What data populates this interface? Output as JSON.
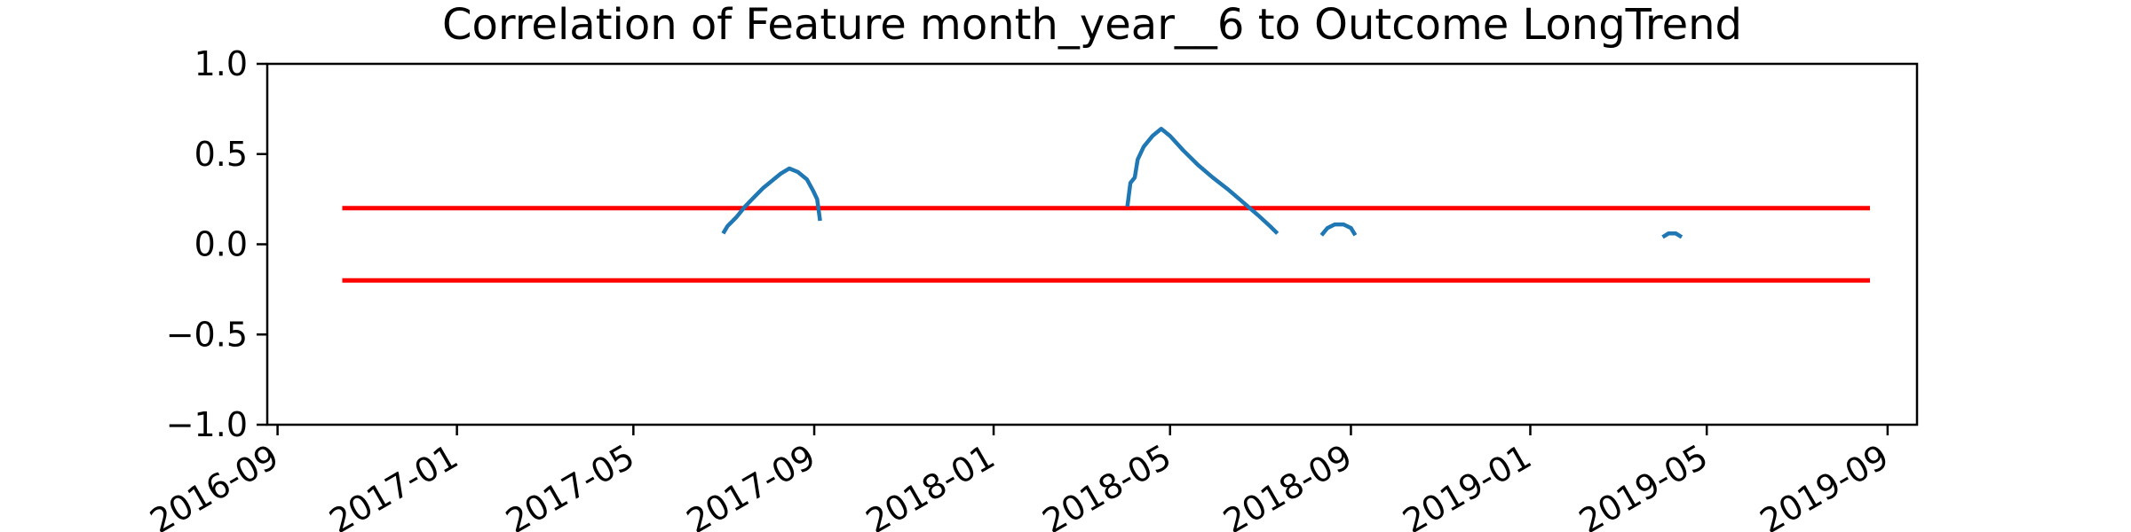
{
  "chart_data": {
    "type": "line",
    "title": "Correlation of Feature month_year__6 to Outcome LongTrend",
    "xlabel": "",
    "ylabel": "",
    "x_axis_type": "date",
    "xlim": [
      "2016-08-25",
      "2019-09-21"
    ],
    "ylim": [
      -1.0,
      1.0
    ],
    "x_ticks": [
      "2016-09",
      "2017-01",
      "2017-05",
      "2017-09",
      "2018-01",
      "2018-05",
      "2018-09",
      "2019-01",
      "2019-05",
      "2019-09"
    ],
    "y_ticks": [
      "1.0",
      "0.5",
      "0.0",
      "−0.5",
      "−1.0"
    ],
    "y_tick_values": [
      1.0,
      0.5,
      0.0,
      -0.5,
      -1.0
    ],
    "grid": false,
    "legend": "none",
    "series": [
      {
        "color": "#1f77b4",
        "segments": [
          [
            [
              "2017-07-01",
              0.06
            ],
            [
              "2017-07-04",
              0.1
            ],
            [
              "2017-07-10",
              0.15
            ],
            [
              "2017-07-16",
              0.21
            ],
            [
              "2017-07-22",
              0.26
            ],
            [
              "2017-07-28",
              0.31
            ],
            [
              "2017-08-03",
              0.35
            ],
            [
              "2017-08-09",
              0.39
            ],
            [
              "2017-08-15",
              0.42
            ],
            [
              "2017-08-21",
              0.4
            ],
            [
              "2017-08-27",
              0.36
            ],
            [
              "2017-08-31",
              0.3
            ],
            [
              "2017-09-03",
              0.25
            ],
            [
              "2017-09-05",
              0.13
            ]
          ],
          [
            [
              "2018-04-02",
              0.21
            ],
            [
              "2018-04-04",
              0.34
            ],
            [
              "2018-04-07",
              0.37
            ],
            [
              "2018-04-09",
              0.47
            ],
            [
              "2018-04-13",
              0.54
            ],
            [
              "2018-04-19",
              0.6
            ],
            [
              "2018-04-25",
              0.64
            ],
            [
              "2018-05-01",
              0.6
            ],
            [
              "2018-05-10",
              0.52
            ],
            [
              "2018-05-20",
              0.44
            ],
            [
              "2018-05-30",
              0.37
            ],
            [
              "2018-06-10",
              0.3
            ],
            [
              "2018-06-20",
              0.23
            ],
            [
              "2018-06-30",
              0.16
            ],
            [
              "2018-07-08",
              0.1
            ],
            [
              "2018-07-13",
              0.06
            ]
          ],
          [
            [
              "2018-08-12",
              0.05
            ],
            [
              "2018-08-16",
              0.09
            ],
            [
              "2018-08-21",
              0.11
            ],
            [
              "2018-08-27",
              0.11
            ],
            [
              "2018-09-01",
              0.09
            ],
            [
              "2018-09-04",
              0.05
            ]
          ],
          [
            [
              "2019-04-01",
              0.04
            ],
            [
              "2019-04-05",
              0.06
            ],
            [
              "2019-04-10",
              0.06
            ],
            [
              "2019-04-14",
              0.04
            ]
          ]
        ]
      }
    ],
    "reference_lines": [
      {
        "y": 0.2,
        "x_start": "2016-10-15",
        "x_end": "2019-08-20",
        "color": "#ff0000"
      },
      {
        "y": -0.2,
        "x_start": "2016-10-15",
        "x_end": "2019-08-20",
        "color": "#ff0000"
      }
    ]
  }
}
